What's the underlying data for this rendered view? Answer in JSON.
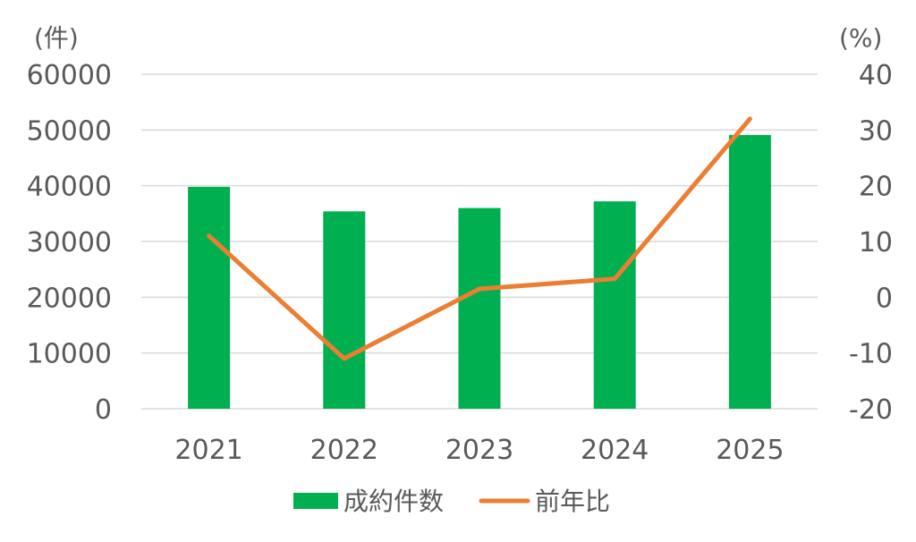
{
  "chart_data": {
    "type": "bar",
    "categories": [
      "2021",
      "2022",
      "2023",
      "2024",
      "2025"
    ],
    "series": [
      {
        "name": "成約件数",
        "type": "bar",
        "axis": "left",
        "values": [
          39800,
          35400,
          36000,
          37200,
          49100
        ],
        "color": "#00b050"
      },
      {
        "name": "前年比",
        "type": "line",
        "axis": "right",
        "values": [
          11,
          -11,
          1.5,
          3.3,
          32
        ],
        "color": "#ed7d31"
      }
    ],
    "left_axis": {
      "unit": "(件)",
      "ylim": [
        0,
        60000
      ],
      "ticks": [
        "0",
        "10000",
        "20000",
        "30000",
        "40000",
        "50000",
        "60000"
      ]
    },
    "right_axis": {
      "unit": "(%)",
      "ylim": [
        -20,
        40
      ],
      "ticks": [
        "-20",
        "-10",
        "0",
        "10",
        "20",
        "30",
        "40"
      ]
    },
    "legend": {
      "placement": "bottom",
      "entries": [
        "成約件数",
        "前年比"
      ]
    },
    "grid": true
  }
}
